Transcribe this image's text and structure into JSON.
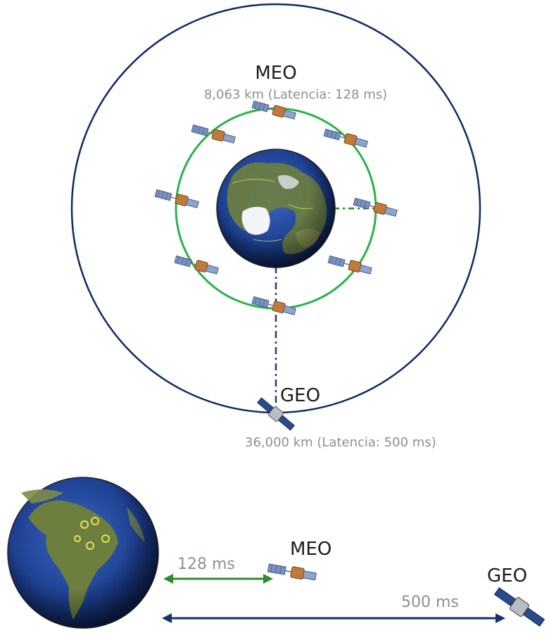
{
  "orbit_diagram": {
    "meo": {
      "title": "MEO",
      "detail": "8,063 km (Latencia: 128 ms)"
    },
    "geo": {
      "title": "GEO",
      "detail": "36,000 km (Latencia: 500 ms)"
    }
  },
  "latency_comparison": {
    "meo": {
      "title": "MEO",
      "latency": "128 ms"
    },
    "geo": {
      "title": "GEO",
      "latency": "500 ms"
    }
  },
  "colors": {
    "geo_orbit": "#0d2a66",
    "meo_orbit": "#27b24a",
    "meo_arrow": "#2e8b2e",
    "geo_arrow": "#15316b",
    "dash_line": "#1f3f7a",
    "earth_ocean": "#1d3f8f",
    "earth_land": "#6d7f3e",
    "satellite_body": "#c07a3c",
    "satellite_panel": "#6f87b5"
  },
  "icons": [
    "earth-north-pole-icon",
    "earth-south-america-icon",
    "satellite-icon"
  ]
}
